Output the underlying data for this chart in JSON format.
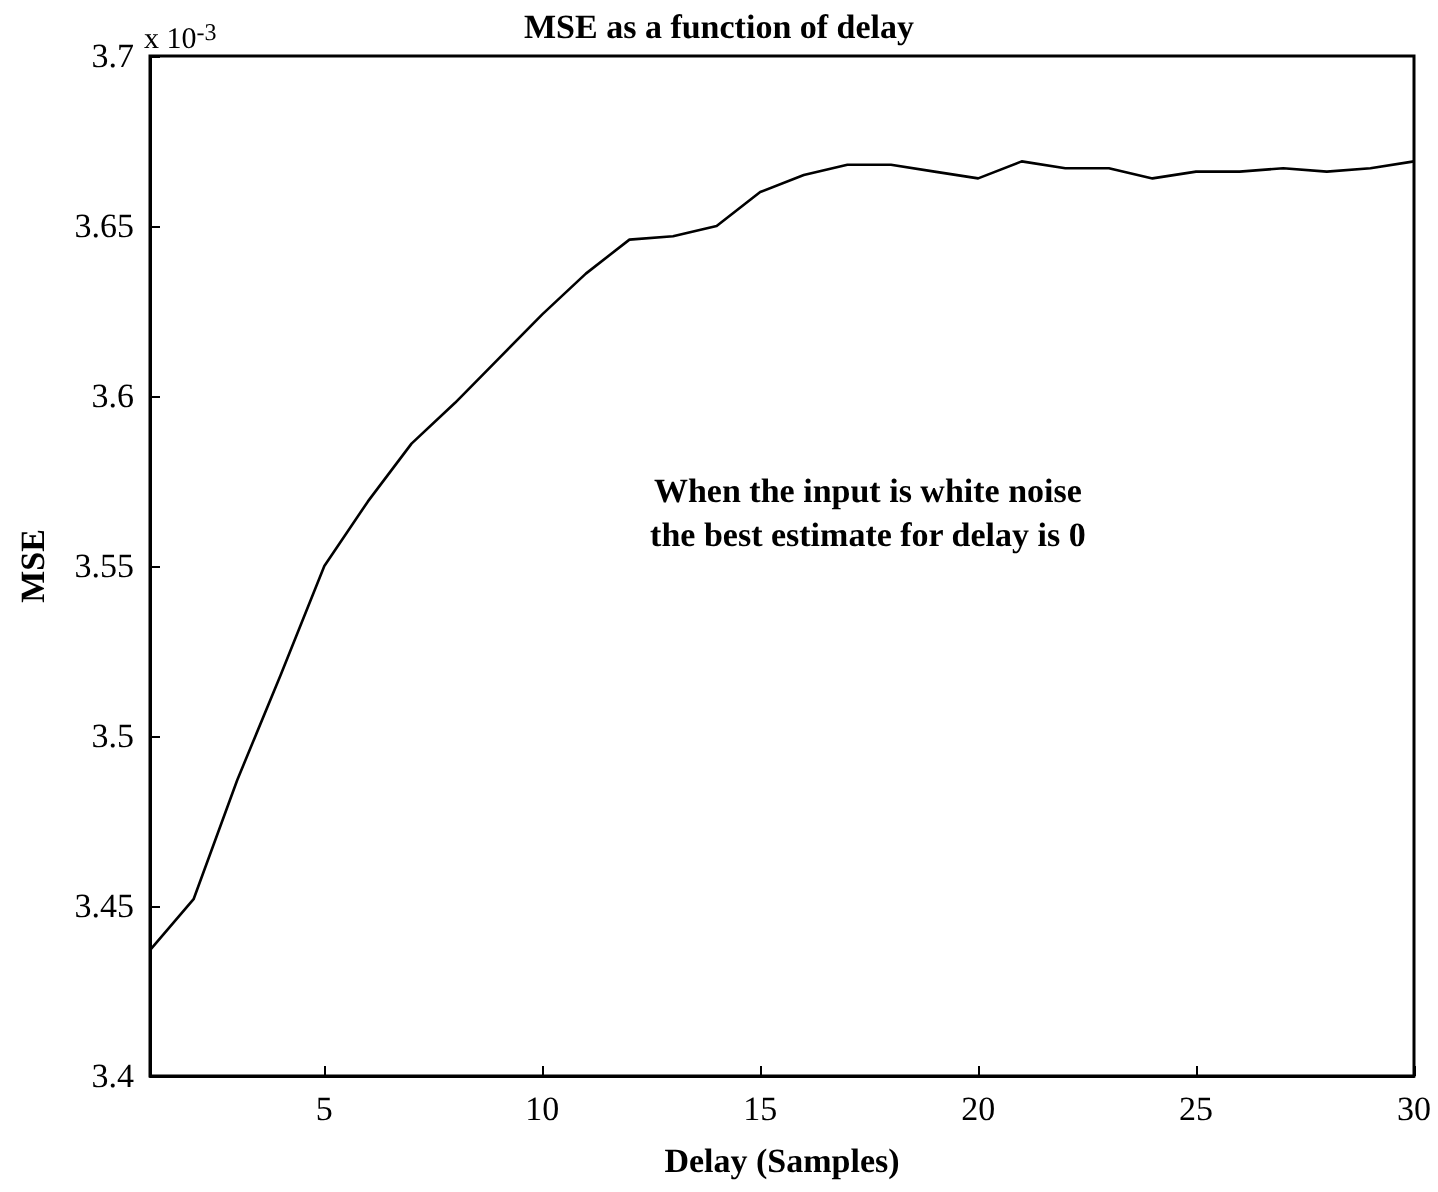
{
  "chart_data": {
    "type": "line",
    "title": "MSE as a function of delay",
    "xlabel": "Delay (Samples)",
    "ylabel": "MSE",
    "annotations": [
      "x 10$^{-3}$",
      "When the input is white noise",
      "the best estimate for delay is 0"
    ],
    "x": [
      1,
      2,
      3,
      4,
      5,
      6,
      7,
      8,
      9,
      10,
      11,
      12,
      13,
      14,
      15,
      16,
      17,
      18,
      19,
      20,
      21,
      22,
      23,
      24,
      25,
      26,
      27,
      28,
      29,
      30
    ],
    "series": [
      {
        "color": "#000000",
        "values": [
          3.437,
          3.452,
          3.487,
          3.518,
          3.55,
          3.569,
          3.586,
          3.598,
          3.611,
          3.624,
          3.636,
          3.646,
          3.647,
          3.65,
          3.66,
          3.665,
          3.668,
          3.668,
          3.666,
          3.664,
          3.669,
          3.667,
          3.667,
          3.664,
          3.666,
          3.666,
          3.667,
          3.666,
          3.667,
          3.669
        ]
      }
    ],
    "xlim": [
      1,
      30
    ],
    "xticks": [
      5,
      10,
      15,
      20,
      25,
      30
    ],
    "ylim": [
      3.4,
      3.7
    ],
    "yticks": [
      3.4,
      3.45,
      3.5,
      3.55,
      3.6,
      3.65,
      3.7
    ],
    "grid": false,
    "marker": "none",
    "line_style": "solid"
  }
}
